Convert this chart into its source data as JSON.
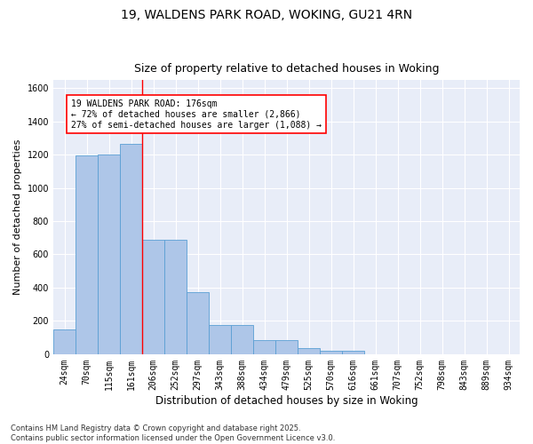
{
  "title_line1": "19, WALDENS PARK ROAD, WOKING, GU21 4RN",
  "title_line2": "Size of property relative to detached houses in Woking",
  "xlabel": "Distribution of detached houses by size in Woking",
  "ylabel": "Number of detached properties",
  "categories": [
    "24sqm",
    "70sqm",
    "115sqm",
    "161sqm",
    "206sqm",
    "252sqm",
    "297sqm",
    "343sqm",
    "388sqm",
    "434sqm",
    "479sqm",
    "525sqm",
    "570sqm",
    "616sqm",
    "661sqm",
    "707sqm",
    "752sqm",
    "798sqm",
    "843sqm",
    "889sqm",
    "934sqm"
  ],
  "values": [
    150,
    1195,
    1200,
    1265,
    690,
    690,
    375,
    175,
    175,
    85,
    85,
    35,
    20,
    20,
    0,
    0,
    0,
    0,
    0,
    0,
    0
  ],
  "bar_color": "#aec6e8",
  "bar_edge_color": "#5a9fd4",
  "vline_x": 3.5,
  "vline_color": "red",
  "annotation_text": "19 WALDENS PARK ROAD: 176sqm\n← 72% of detached houses are smaller (2,866)\n27% of semi-detached houses are larger (1,088) →",
  "annotation_box_color": "white",
  "annotation_box_edge_color": "red",
  "ylim": [
    0,
    1650
  ],
  "yticks": [
    0,
    200,
    400,
    600,
    800,
    1000,
    1200,
    1400,
    1600
  ],
  "background_color": "#e8edf8",
  "grid_color": "white",
  "footnote": "Contains HM Land Registry data © Crown copyright and database right 2025.\nContains public sector information licensed under the Open Government Licence v3.0.",
  "title_fontsize": 10,
  "subtitle_fontsize": 9,
  "xlabel_fontsize": 8.5,
  "ylabel_fontsize": 8,
  "tick_fontsize": 7,
  "annotation_fontsize": 7,
  "footnote_fontsize": 6
}
